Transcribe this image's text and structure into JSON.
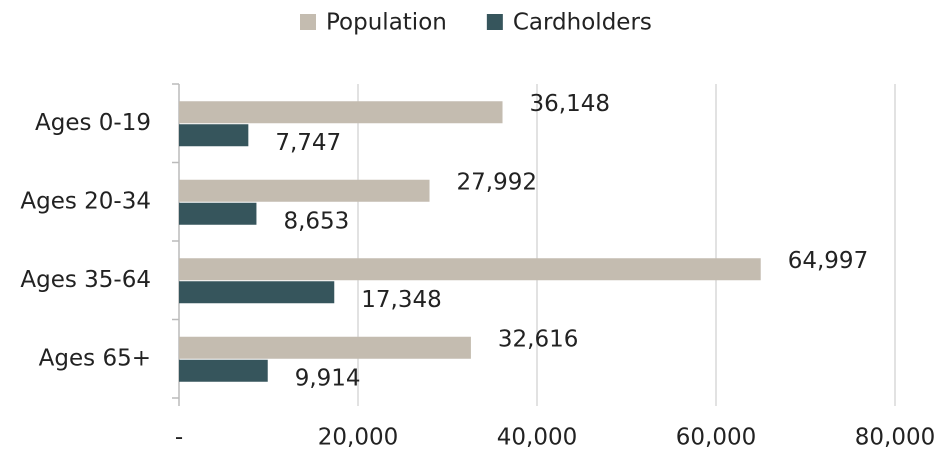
{
  "chart_data": {
    "type": "hbar",
    "categories": [
      "Ages 0-19",
      "Ages 20-34",
      "Ages 35-64",
      "Ages 65+"
    ],
    "series": [
      {
        "name": "Population",
        "color": "#c4bcb0",
        "values": [
          36148,
          27992,
          64997,
          32616
        ],
        "value_labels": [
          "36,148",
          "27,992",
          "64,997",
          "32,616"
        ]
      },
      {
        "name": "Cardholders",
        "color": "#36555c",
        "values": [
          7747,
          8653,
          17348,
          9914
        ],
        "value_labels": [
          "7,747",
          "8,653",
          "17,348",
          "9,914"
        ]
      }
    ],
    "xlim": [
      0,
      80000
    ],
    "xticks": [
      {
        "value": 0,
        "label": "-"
      },
      {
        "value": 20000,
        "label": "20,000"
      },
      {
        "value": 40000,
        "label": "40,000"
      },
      {
        "value": 60000,
        "label": "60,000"
      },
      {
        "value": 80000,
        "label": "80,000"
      }
    ],
    "grid": true,
    "legend": "top"
  }
}
